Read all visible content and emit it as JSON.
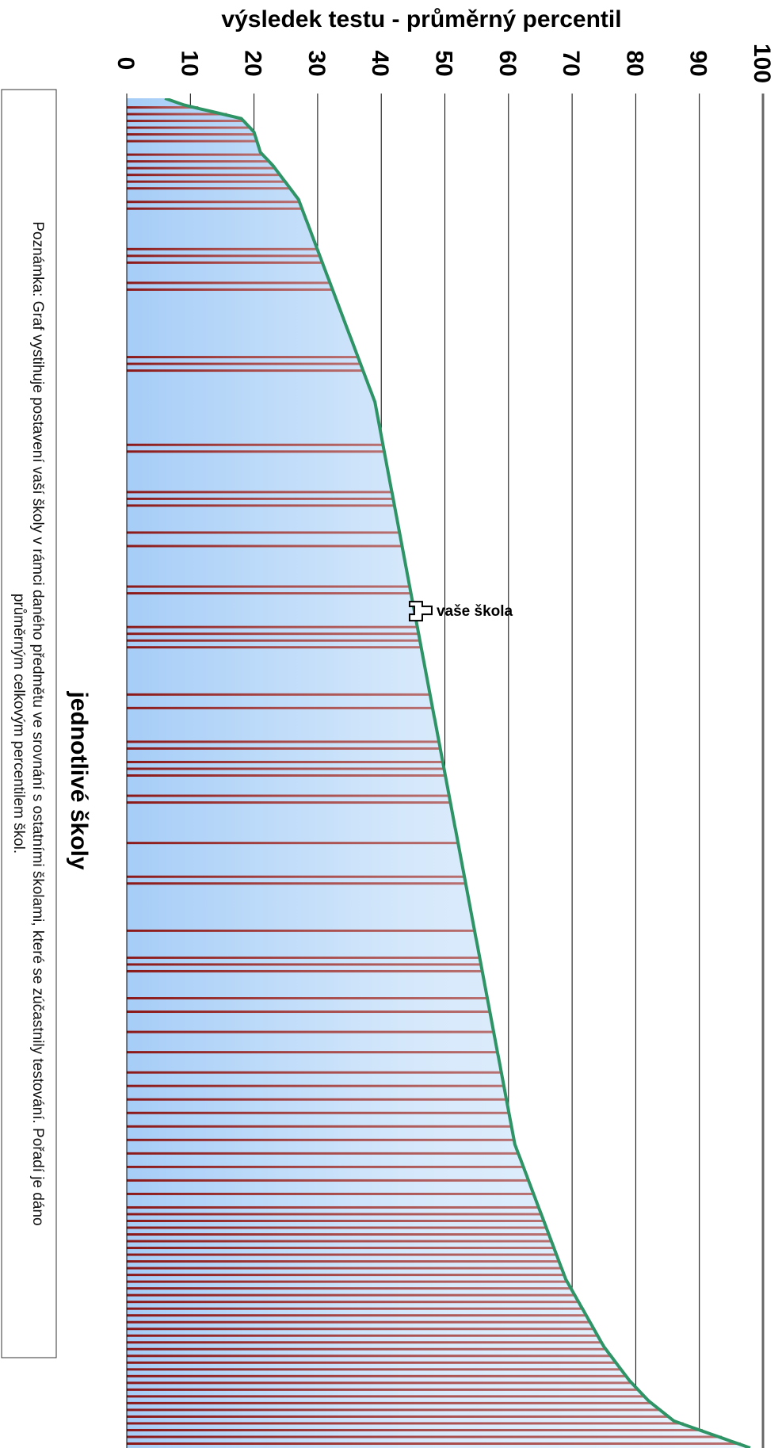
{
  "chart_data": {
    "type": "area",
    "orientation": "rotated-90",
    "title": "",
    "ylabel": "výsledek testu - průměrný percentil",
    "xlabel": "jednotlivé školy",
    "ylim": [
      0,
      100
    ],
    "yticks": [
      0,
      10,
      20,
      30,
      40,
      50,
      60,
      70,
      80,
      90,
      100
    ],
    "ytick_labels": [
      "0",
      "10",
      "20",
      "30",
      "40",
      "50",
      "60",
      "70",
      "80",
      "90",
      "100"
    ],
    "grid": true,
    "school_count": 200,
    "curve": [
      [
        0,
        6
      ],
      [
        1,
        9
      ],
      [
        3,
        18
      ],
      [
        5,
        20
      ],
      [
        8,
        21
      ],
      [
        10,
        23
      ],
      [
        15,
        27
      ],
      [
        20,
        29
      ],
      [
        25,
        31
      ],
      [
        30,
        33
      ],
      [
        35,
        35
      ],
      [
        40,
        37
      ],
      [
        45,
        39
      ],
      [
        50,
        40
      ],
      [
        55,
        41
      ],
      [
        60,
        42
      ],
      [
        65,
        43
      ],
      [
        70,
        44
      ],
      [
        75,
        45
      ],
      [
        80,
        46
      ],
      [
        85,
        47
      ],
      [
        90,
        48
      ],
      [
        95,
        49
      ],
      [
        100,
        50
      ],
      [
        105,
        51
      ],
      [
        110,
        52
      ],
      [
        115,
        53
      ],
      [
        120,
        54
      ],
      [
        125,
        55
      ],
      [
        130,
        56
      ],
      [
        135,
        57
      ],
      [
        140,
        58
      ],
      [
        145,
        59
      ],
      [
        150,
        60
      ],
      [
        155,
        61
      ],
      [
        160,
        63
      ],
      [
        165,
        65
      ],
      [
        170,
        67
      ],
      [
        175,
        69
      ],
      [
        180,
        72
      ],
      [
        185,
        75
      ],
      [
        190,
        79
      ],
      [
        193,
        82
      ],
      [
        196,
        86
      ],
      [
        198,
        92
      ],
      [
        200,
        98
      ]
    ],
    "highlighted_schools": [
      1,
      2,
      3,
      4,
      5,
      6,
      8,
      9,
      10,
      11,
      12,
      13,
      15,
      16,
      22,
      23,
      24,
      27,
      28,
      38,
      39,
      40,
      51,
      52,
      58,
      59,
      60,
      64,
      66,
      72,
      73,
      78,
      79,
      80,
      81,
      88,
      90,
      95,
      96,
      98,
      99,
      100,
      103,
      104,
      110,
      115,
      116,
      123,
      127,
      128,
      129,
      133,
      135,
      138,
      141,
      144,
      146,
      148,
      150,
      152,
      154,
      156,
      158,
      160,
      162,
      164,
      165,
      166,
      167,
      168,
      169,
      170,
      171,
      172,
      173,
      174,
      175,
      176,
      177,
      178,
      179,
      180,
      181,
      182,
      183,
      184,
      185,
      186,
      187,
      188,
      189,
      190,
      191,
      192,
      193,
      194,
      195,
      196,
      197,
      198,
      199
    ],
    "marker": {
      "school_index": 76,
      "label": "vaše škola"
    },
    "note": [
      "Poznámka: Graf vystihuje postavení vaší školy v rámci daného předmětu ve srovnání s ostatními školami, které se zúčastnily testování. Pořadí je dáno",
      "průměrným celkovým percentilem škol."
    ],
    "colors": {
      "curve": "#2e9466",
      "bar": "#9c2a2a",
      "fill_dark": "#a6cdf7",
      "fill_light": "#e8f2fc",
      "grid": "#000000"
    }
  }
}
